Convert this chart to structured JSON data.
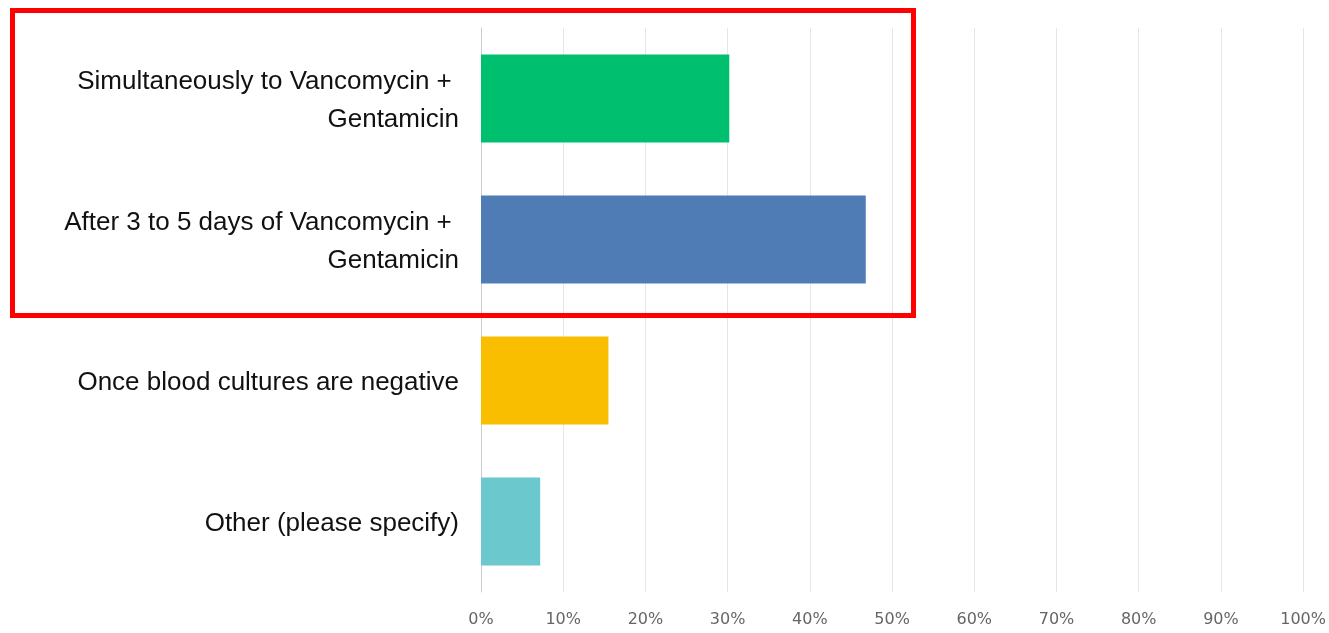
{
  "chart_data": {
    "type": "bar",
    "orientation": "horizontal",
    "categories": [
      "Simultaneously to Vancomycin + Gentamicin",
      "After 3 to 5 days of Vancomycin + Gentamicin",
      "Once blood cultures are negative",
      "Other (please specify)"
    ],
    "values": [
      30.2,
      46.8,
      15.5,
      7.2
    ],
    "colors": [
      "#00bf6f",
      "#507cb6",
      "#f9be00",
      "#6bc8cd"
    ],
    "xlim": [
      0,
      100
    ],
    "xticks": [
      {
        "value": 0,
        "label": "0%"
      },
      {
        "value": 10,
        "label": "10%"
      },
      {
        "value": 20,
        "label": "20%"
      },
      {
        "value": 30,
        "label": "30%"
      },
      {
        "value": 40,
        "label": "40%"
      },
      {
        "value": 50,
        "label": "50%"
      },
      {
        "value": 60,
        "label": "60%"
      },
      {
        "value": 70,
        "label": "70%"
      },
      {
        "value": 80,
        "label": "80%"
      },
      {
        "value": 90,
        "label": "90%"
      },
      {
        "value": 100,
        "label": "100%"
      }
    ],
    "grid": "x"
  }
}
